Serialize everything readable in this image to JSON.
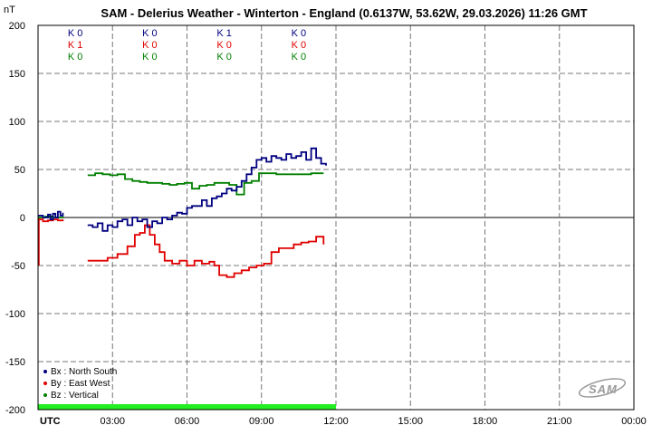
{
  "chart_data": {
    "type": "line",
    "title": "SAM - Delerius Weather - Winterton - England (0.6137W, 53.62W, 29.03.2026)  11:26 GMT",
    "ylabel": "nT",
    "xlabel": "UTC",
    "ylim": [
      -200,
      200
    ],
    "xlim": [
      0,
      24
    ],
    "yticks": [
      "200",
      "150",
      "100",
      "50",
      "0",
      "-50",
      "-100",
      "-150",
      "-200"
    ],
    "xticks": [
      "03:00",
      "06:00",
      "09:00",
      "12:00",
      "15:00",
      "18:00",
      "21:00",
      "00:00"
    ],
    "grid": true,
    "legend_position": "bottom-left",
    "k_index_rows": [
      {
        "color": "#000080",
        "values": [
          "K 0",
          "K 0",
          "K 1",
          "K 0"
        ]
      },
      {
        "color": "#e00000",
        "values": [
          "K 1",
          "K 0",
          "K 0",
          "K 0"
        ]
      },
      {
        "color": "#008000",
        "values": [
          "K 0",
          "K 0",
          "K 0",
          "K 0"
        ]
      }
    ],
    "series": [
      {
        "name": "Bx : North South",
        "color": "#000080",
        "segments": [
          [
            [
              0,
              2
            ],
            [
              0.2,
              0
            ],
            [
              0.4,
              3
            ],
            [
              0.5,
              -2
            ],
            [
              0.6,
              4
            ],
            [
              0.7,
              0
            ],
            [
              0.8,
              6
            ],
            [
              0.9,
              2
            ],
            [
              1.0,
              5
            ]
          ],
          [
            [
              2.0,
              -8
            ],
            [
              2.2,
              -10
            ],
            [
              2.4,
              -6
            ],
            [
              2.6,
              -14
            ],
            [
              2.8,
              -8
            ],
            [
              3.0,
              -10
            ],
            [
              3.2,
              -4
            ],
            [
              3.4,
              -2
            ],
            [
              3.6,
              -8
            ],
            [
              3.8,
              0
            ],
            [
              4.0,
              -4
            ],
            [
              4.2,
              -2
            ],
            [
              4.4,
              -10
            ],
            [
              4.6,
              -4
            ],
            [
              4.8,
              -6
            ],
            [
              5.0,
              0
            ],
            [
              5.2,
              -2
            ],
            [
              5.4,
              2
            ],
            [
              5.6,
              5
            ],
            [
              5.8,
              4
            ],
            [
              6.0,
              10
            ],
            [
              6.2,
              12
            ],
            [
              6.4,
              12
            ],
            [
              6.6,
              18
            ],
            [
              6.8,
              12
            ],
            [
              7.0,
              20
            ],
            [
              7.2,
              22
            ],
            [
              7.4,
              25
            ],
            [
              7.6,
              30
            ],
            [
              7.8,
              28
            ],
            [
              8.0,
              32
            ],
            [
              8.2,
              38
            ],
            [
              8.4,
              45
            ],
            [
              8.6,
              52
            ],
            [
              8.8,
              60
            ],
            [
              9.0,
              62
            ],
            [
              9.2,
              58
            ],
            [
              9.4,
              64
            ],
            [
              9.6,
              62
            ],
            [
              9.8,
              60
            ],
            [
              10.0,
              66
            ],
            [
              10.2,
              62
            ],
            [
              10.4,
              64
            ],
            [
              10.6,
              68
            ],
            [
              10.8,
              60
            ],
            [
              11.0,
              72
            ],
            [
              11.2,
              62
            ],
            [
              11.4,
              56
            ],
            [
              11.6,
              54
            ]
          ]
        ]
      },
      {
        "name": "By : East West",
        "color": "#e00000",
        "segments": [
          [
            [
              0,
              -2
            ],
            [
              0.2,
              -4
            ],
            [
              0.4,
              -3
            ],
            [
              0.6,
              -2
            ],
            [
              0.8,
              -3
            ],
            [
              1.0,
              -2
            ]
          ],
          [
            [
              2.0,
              -45
            ],
            [
              2.4,
              -45
            ],
            [
              2.8,
              -42
            ],
            [
              3.2,
              -38
            ],
            [
              3.6,
              -30
            ],
            [
              3.9,
              -18
            ],
            [
              4.1,
              -16
            ],
            [
              4.3,
              -8
            ],
            [
              4.5,
              -18
            ],
            [
              4.7,
              -28
            ],
            [
              4.9,
              -36
            ],
            [
              5.1,
              -45
            ],
            [
              5.4,
              -48
            ],
            [
              5.7,
              -45
            ],
            [
              6.0,
              -50
            ],
            [
              6.3,
              -45
            ],
            [
              6.6,
              -48
            ],
            [
              6.9,
              -46
            ],
            [
              7.1,
              -50
            ],
            [
              7.3,
              -60
            ],
            [
              7.6,
              -62
            ],
            [
              7.9,
              -58
            ],
            [
              8.2,
              -55
            ],
            [
              8.5,
              -52
            ],
            [
              8.8,
              -50
            ],
            [
              9.1,
              -48
            ],
            [
              9.4,
              -36
            ],
            [
              9.7,
              -32
            ],
            [
              10.0,
              -32
            ],
            [
              10.3,
              -28
            ],
            [
              10.6,
              -26
            ],
            [
              10.9,
              -25
            ],
            [
              11.2,
              -20
            ],
            [
              11.5,
              -28
            ]
          ]
        ]
      },
      {
        "name": "Bz : Vertical",
        "color": "#008000",
        "segments": [
          [
            [
              0,
              0
            ],
            [
              0.3,
              1
            ],
            [
              0.6,
              0
            ],
            [
              1.0,
              1
            ]
          ],
          [
            [
              2.0,
              44
            ],
            [
              2.3,
              46
            ],
            [
              2.6,
              45
            ],
            [
              2.9,
              44
            ],
            [
              3.2,
              45
            ],
            [
              3.5,
              40
            ],
            [
              3.8,
              38
            ],
            [
              4.1,
              37
            ],
            [
              4.4,
              36
            ],
            [
              4.7,
              36
            ],
            [
              5.0,
              35
            ],
            [
              5.3,
              34
            ],
            [
              5.6,
              35
            ],
            [
              5.9,
              36
            ],
            [
              6.2,
              30
            ],
            [
              6.5,
              33
            ],
            [
              6.8,
              34
            ],
            [
              7.1,
              36
            ],
            [
              7.4,
              36
            ],
            [
              7.7,
              34
            ],
            [
              8.0,
              24
            ],
            [
              8.3,
              36
            ],
            [
              8.6,
              38
            ],
            [
              8.9,
              46
            ],
            [
              9.2,
              46
            ],
            [
              9.6,
              45
            ],
            [
              10.0,
              45
            ],
            [
              10.5,
              45
            ],
            [
              11.0,
              46
            ],
            [
              11.5,
              46
            ]
          ]
        ]
      }
    ],
    "spike": {
      "color": "#e00000",
      "x": 0.0,
      "y": -50
    },
    "data_coverage_bar": {
      "color": "#22ee22",
      "from": 0,
      "to": 12
    }
  },
  "logo_text": "SAM"
}
